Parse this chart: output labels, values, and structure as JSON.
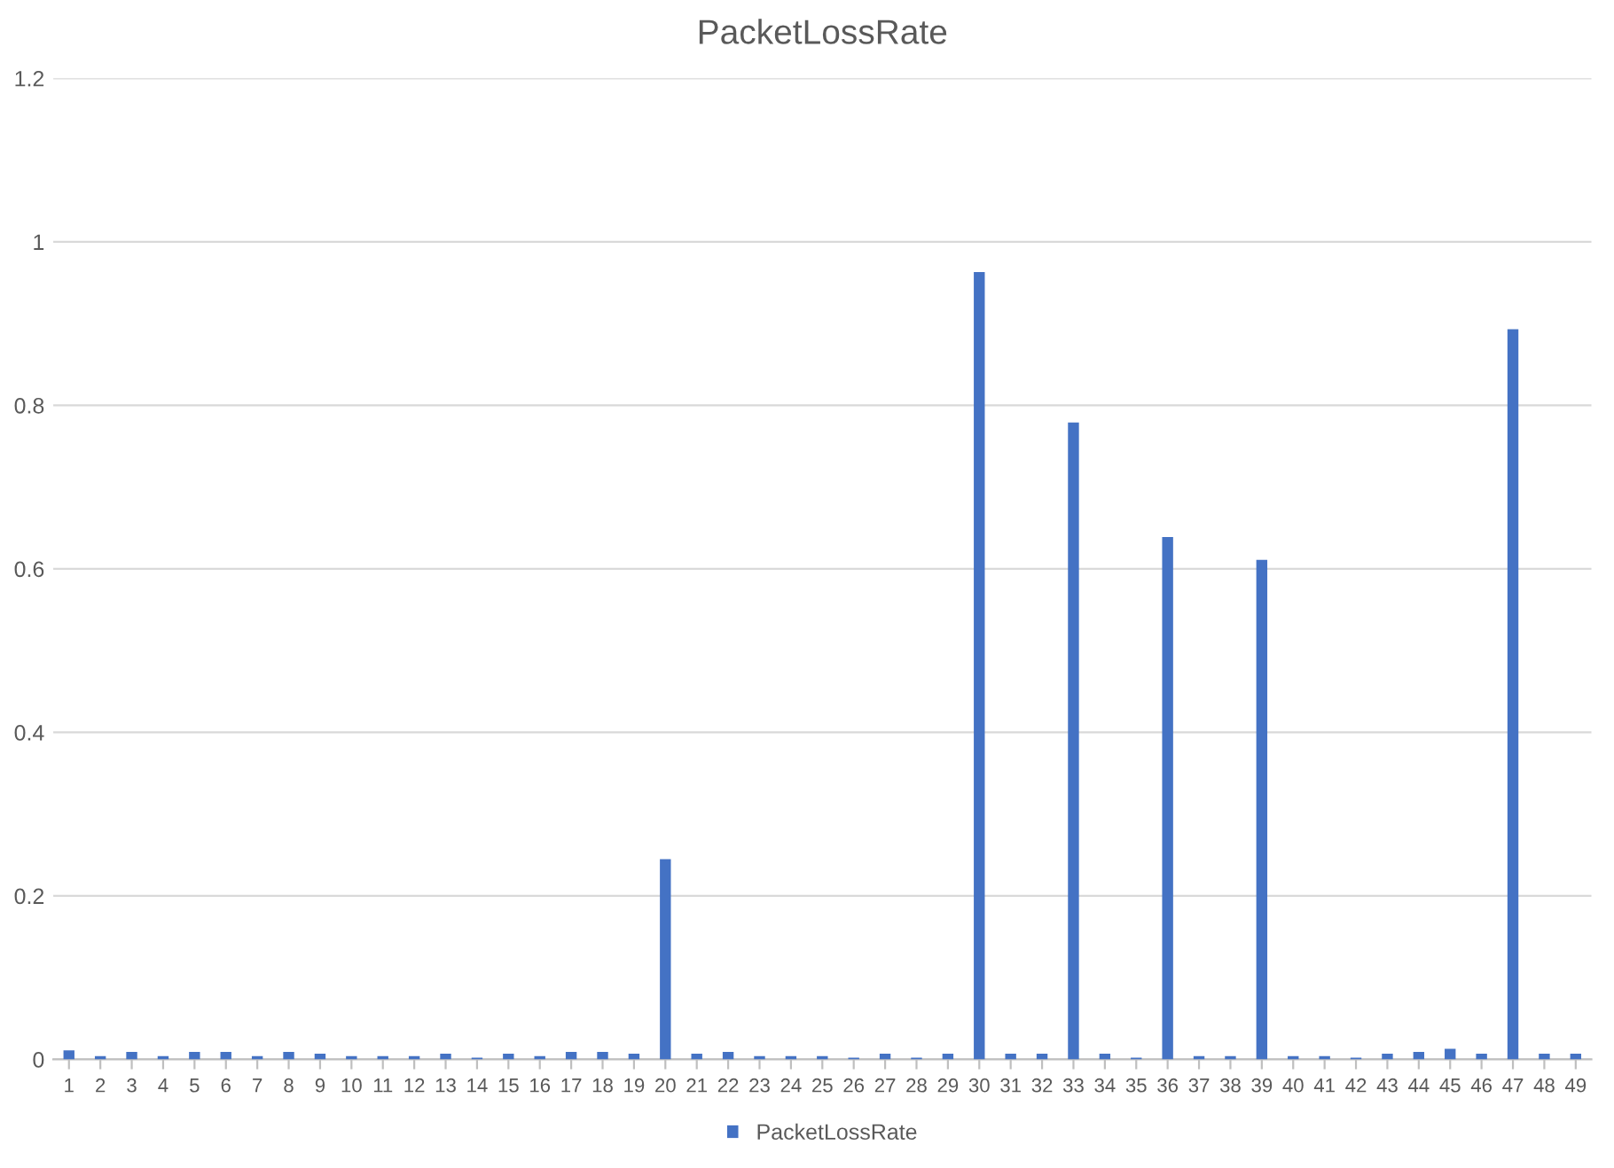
{
  "chart_data": {
    "type": "bar",
    "title": "PacketLossRate",
    "categories": [
      "1",
      "2",
      "3",
      "4",
      "5",
      "6",
      "7",
      "8",
      "9",
      "10",
      "11",
      "12",
      "13",
      "14",
      "15",
      "16",
      "17",
      "18",
      "19",
      "20",
      "21",
      "22",
      "23",
      "24",
      "25",
      "26",
      "27",
      "28",
      "29",
      "30",
      "31",
      "32",
      "33",
      "34",
      "35",
      "36",
      "37",
      "38",
      "39",
      "40",
      "41",
      "42",
      "43",
      "44",
      "45",
      "46",
      "47",
      "48",
      "49"
    ],
    "series": [
      {
        "name": "PacketLossRate",
        "color": "#4472c4",
        "values": [
          0.011,
          0.004,
          0.009,
          0.004,
          0.009,
          0.009,
          0.004,
          0.009,
          0.007,
          0.004,
          0.004,
          0.004,
          0.007,
          0.002,
          0.007,
          0.004,
          0.009,
          0.009,
          0.007,
          0.245,
          0.007,
          0.009,
          0.004,
          0.004,
          0.004,
          0.002,
          0.007,
          0.002,
          0.007,
          0.963,
          0.007,
          0.007,
          0.779,
          0.007,
          0.002,
          0.639,
          0.004,
          0.004,
          0.611,
          0.004,
          0.004,
          0.002,
          0.007,
          0.009,
          0.013,
          0.007,
          0.893,
          0.007,
          0.007
        ]
      }
    ],
    "ylim": [
      0,
      1.2
    ],
    "yticks": [
      0,
      0.2,
      0.4,
      0.6,
      0.8,
      1,
      1.2
    ],
    "grid": "y",
    "legend": "bottom"
  }
}
